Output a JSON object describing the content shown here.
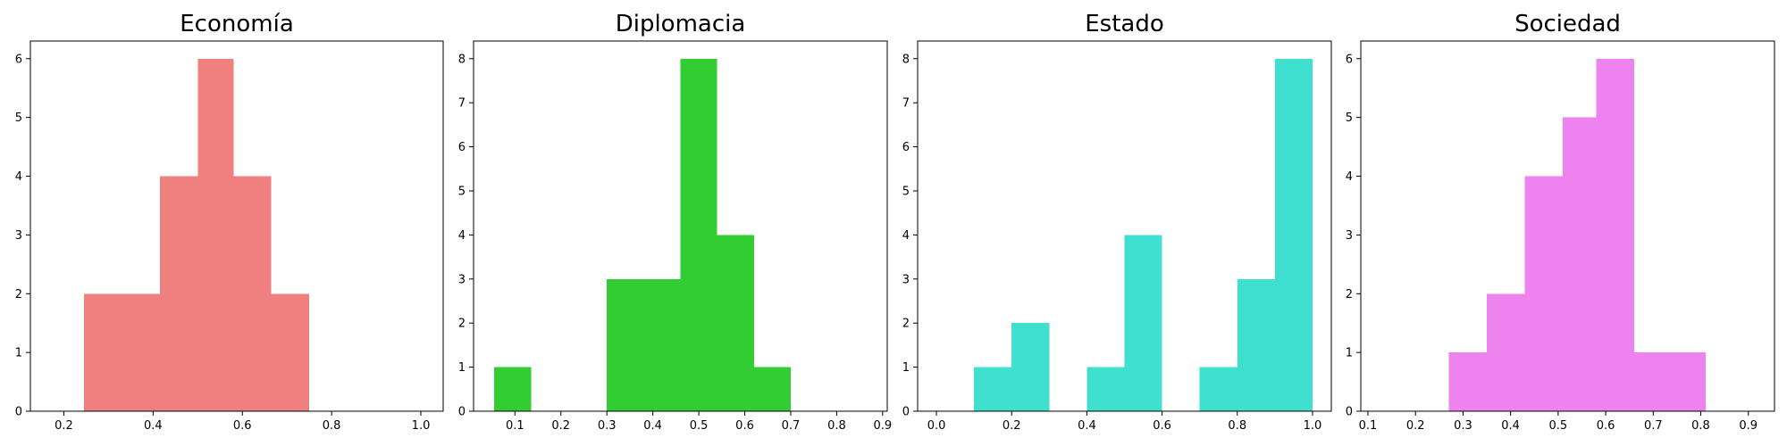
{
  "chart_data": [
    {
      "type": "bar",
      "title": "Economía",
      "color": "#f08080",
      "xlim": [
        0.125,
        1.05
      ],
      "ylim": [
        0,
        6.3
      ],
      "xticks": [
        0.2,
        0.4,
        0.6,
        0.8,
        1.0
      ],
      "xtick_labels": [
        "0.2",
        "0.4",
        "0.6",
        "0.8",
        "1.0"
      ],
      "yticks": [
        0,
        1,
        2,
        3,
        4,
        5,
        6
      ],
      "bins": [
        {
          "x0": 0.245,
          "x1": 0.33,
          "count": 2
        },
        {
          "x0": 0.33,
          "x1": 0.415,
          "count": 2
        },
        {
          "x0": 0.415,
          "x1": 0.5,
          "count": 4
        },
        {
          "x0": 0.5,
          "x1": 0.58,
          "count": 6
        },
        {
          "x0": 0.58,
          "x1": 0.665,
          "count": 4
        },
        {
          "x0": 0.665,
          "x1": 0.75,
          "count": 2
        }
      ]
    },
    {
      "type": "bar",
      "title": "Diplomacia",
      "color": "#32cd32",
      "xlim": [
        0.01,
        0.91
      ],
      "ylim": [
        0,
        8.4
      ],
      "xticks": [
        0.1,
        0.2,
        0.3,
        0.4,
        0.5,
        0.6,
        0.7,
        0.8,
        0.9
      ],
      "xtick_labels": [
        "0.1",
        "0.2",
        "0.3",
        "0.4",
        "0.5",
        "0.6",
        "0.7",
        "0.8",
        "0.9"
      ],
      "yticks": [
        0,
        1,
        2,
        3,
        4,
        5,
        6,
        7,
        8
      ],
      "bins": [
        {
          "x0": 0.055,
          "x1": 0.135,
          "count": 1
        },
        {
          "x0": 0.135,
          "x1": 0.215,
          "count": 0
        },
        {
          "x0": 0.215,
          "x1": 0.3,
          "count": 0
        },
        {
          "x0": 0.3,
          "x1": 0.38,
          "count": 3
        },
        {
          "x0": 0.38,
          "x1": 0.46,
          "count": 3
        },
        {
          "x0": 0.46,
          "x1": 0.54,
          "count": 8
        },
        {
          "x0": 0.54,
          "x1": 0.62,
          "count": 4
        },
        {
          "x0": 0.62,
          "x1": 0.7,
          "count": 1
        }
      ]
    },
    {
      "type": "bar",
      "title": "Estado",
      "color": "#40e0d0",
      "xlim": [
        -0.05,
        1.05
      ],
      "ylim": [
        0,
        8.4
      ],
      "xticks": [
        0.0,
        0.2,
        0.4,
        0.6,
        0.8,
        1.0
      ],
      "xtick_labels": [
        "0.0",
        "0.2",
        "0.4",
        "0.6",
        "0.8",
        "1.0"
      ],
      "yticks": [
        0,
        1,
        2,
        3,
        4,
        5,
        6,
        7,
        8
      ],
      "bins": [
        {
          "x0": 0.1,
          "x1": 0.2,
          "count": 1
        },
        {
          "x0": 0.2,
          "x1": 0.3,
          "count": 2
        },
        {
          "x0": 0.3,
          "x1": 0.4,
          "count": 0
        },
        {
          "x0": 0.4,
          "x1": 0.5,
          "count": 1
        },
        {
          "x0": 0.5,
          "x1": 0.6,
          "count": 4
        },
        {
          "x0": 0.6,
          "x1": 0.7,
          "count": 0
        },
        {
          "x0": 0.7,
          "x1": 0.8,
          "count": 1
        },
        {
          "x0": 0.8,
          "x1": 0.9,
          "count": 3
        },
        {
          "x0": 0.9,
          "x1": 1.0,
          "count": 8
        }
      ]
    },
    {
      "type": "bar",
      "title": "Sociedad",
      "color": "#ee82ee",
      "xlim": [
        0.085,
        0.955
      ],
      "ylim": [
        0,
        6.3
      ],
      "xticks": [
        0.1,
        0.2,
        0.3,
        0.4,
        0.5,
        0.6,
        0.7,
        0.8,
        0.9
      ],
      "xtick_labels": [
        "0.1",
        "0.2",
        "0.3",
        "0.4",
        "0.5",
        "0.6",
        "0.7",
        "0.8",
        "0.9"
      ],
      "yticks": [
        0,
        1,
        2,
        3,
        4,
        5,
        6
      ],
      "bins": [
        {
          "x0": 0.27,
          "x1": 0.35,
          "count": 1
        },
        {
          "x0": 0.35,
          "x1": 0.43,
          "count": 2
        },
        {
          "x0": 0.43,
          "x1": 0.51,
          "count": 4
        },
        {
          "x0": 0.51,
          "x1": 0.58,
          "count": 5
        },
        {
          "x0": 0.58,
          "x1": 0.66,
          "count": 6
        },
        {
          "x0": 0.66,
          "x1": 0.74,
          "count": 1
        },
        {
          "x0": 0.74,
          "x1": 0.81,
          "count": 1
        }
      ]
    }
  ]
}
